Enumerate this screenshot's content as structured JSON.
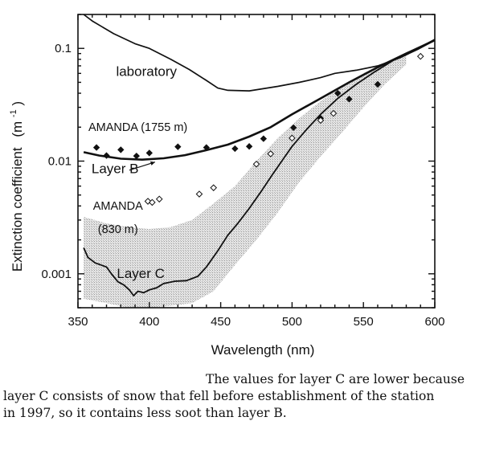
{
  "chart_data": {
    "type": "line",
    "title": "",
    "xlabel": "Wavelength (nm)",
    "ylabel": "Extinction coefficient",
    "ylabel_unit_base": "(m",
    "ylabel_unit_exp": "-1",
    "ylabel_unit_close": ")",
    "xlim": [
      350,
      600
    ],
    "ylim": [
      0.0005,
      0.2
    ],
    "yscale": "log",
    "grid": false,
    "x_ticks": [
      350,
      400,
      450,
      500,
      550,
      600
    ],
    "x_tick_labels": [
      "350",
      "400",
      "450",
      "500",
      "550",
      "600"
    ],
    "y_ticks": [
      0.001,
      0.01,
      0.1
    ],
    "y_tick_labels": [
      "0.001",
      "0.01",
      "0.1"
    ],
    "annotations": [
      {
        "text": "laboratory",
        "x": 398,
        "y": 0.057
      },
      {
        "text": "AMANDA (1755 m)",
        "x": 392,
        "y": 0.0185
      },
      {
        "text": "Layer B",
        "x": 376,
        "y": 0.0078
      },
      {
        "text": "AMANDA",
        "x": 378,
        "y": 0.0037
      },
      {
        "text": "(830 m)",
        "x": 378,
        "y": 0.0023
      },
      {
        "text": "Layer C",
        "x": 394,
        "y": 0.00092
      }
    ],
    "series": [
      {
        "name": "laboratory",
        "style": "line",
        "x": [
          354,
          360,
          375,
          390,
          400,
          415,
          428,
          440,
          448,
          455,
          470,
          490,
          505,
          520,
          530,
          545,
          560,
          575,
          588,
          600
        ],
        "y": [
          0.2,
          0.175,
          0.135,
          0.11,
          0.1,
          0.08,
          0.065,
          0.052,
          0.0445,
          0.0425,
          0.042,
          0.046,
          0.05,
          0.055,
          0.06,
          0.064,
          0.07,
          0.082,
          0.098,
          0.118
        ]
      },
      {
        "name": "Layer B",
        "style": "line",
        "x": [
          354,
          365,
          380,
          395,
          410,
          425,
          440,
          455,
          470,
          485,
          500,
          520,
          540,
          560,
          580,
          600
        ],
        "y": [
          0.012,
          0.0112,
          0.0105,
          0.0103,
          0.0106,
          0.0113,
          0.0125,
          0.014,
          0.0165,
          0.02,
          0.026,
          0.036,
          0.05,
          0.068,
          0.09,
          0.118
        ]
      },
      {
        "name": "Layer C",
        "style": "line",
        "x": [
          354,
          357,
          362,
          366,
          370,
          374,
          378,
          382,
          386,
          389,
          392,
          396,
          400,
          405,
          410,
          418,
          426,
          434,
          440,
          448,
          455,
          462,
          470,
          478,
          486,
          494,
          500,
          510,
          520,
          532,
          545,
          558,
          570,
          582,
          592,
          600
        ],
        "y": [
          0.0017,
          0.0014,
          0.00125,
          0.0012,
          0.00115,
          0.00098,
          0.00085,
          0.0008,
          0.00072,
          0.00064,
          0.0007,
          0.00068,
          0.00072,
          0.00075,
          0.00082,
          0.00086,
          0.00087,
          0.00095,
          0.00115,
          0.0016,
          0.0022,
          0.0028,
          0.0038,
          0.0053,
          0.0075,
          0.0105,
          0.0135,
          0.019,
          0.026,
          0.036,
          0.048,
          0.062,
          0.077,
          0.092,
          0.106,
          0.12
        ]
      },
      {
        "name": "AMANDA (1755 m)",
        "style": "filled-diamond",
        "x": [
          363,
          370,
          380,
          391,
          400,
          420,
          440,
          460,
          470,
          480,
          501,
          520,
          532,
          540,
          560
        ],
        "y": [
          0.0132,
          0.0112,
          0.0126,
          0.0111,
          0.0118,
          0.0134,
          0.0132,
          0.0129,
          0.0135,
          0.0158,
          0.0198,
          0.024,
          0.04,
          0.0355,
          0.048
        ]
      },
      {
        "name": "AMANDA (830 m)",
        "style": "open-diamond",
        "x": [
          399,
          402,
          407,
          435,
          445,
          475,
          485,
          500,
          520,
          529,
          590
        ],
        "y": [
          0.0044,
          0.0043,
          0.0046,
          0.0051,
          0.0058,
          0.0094,
          0.0116,
          0.016,
          0.023,
          0.0265,
          0.085
        ]
      },
      {
        "name": "Layer C spread",
        "style": "shaded-band",
        "x": [
          354,
          370,
          385,
          400,
          415,
          430,
          445,
          460,
          475,
          490,
          505,
          520,
          535,
          550,
          565,
          580
        ],
        "y_low": [
          0.0006,
          0.00055,
          0.0005,
          0.0005,
          0.00052,
          0.00055,
          0.0007,
          0.0012,
          0.002,
          0.0035,
          0.0065,
          0.011,
          0.018,
          0.03,
          0.048,
          0.072
        ],
        "y_high": [
          0.0032,
          0.0028,
          0.0026,
          0.0025,
          0.0026,
          0.003,
          0.0042,
          0.006,
          0.01,
          0.016,
          0.024,
          0.034,
          0.046,
          0.06,
          0.075,
          0.09
        ]
      }
    ]
  },
  "caption": {
    "line1": "The values for layer C are lower because",
    "line2": "layer C consists of snow that fell before establishment of the station",
    "line3": "in 1997, so it contains less soot than layer B."
  }
}
